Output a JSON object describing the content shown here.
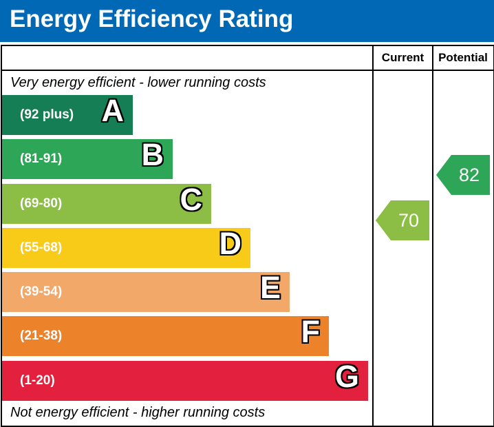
{
  "header": {
    "title": "Energy Efficiency Rating"
  },
  "columns": {
    "current": "Current",
    "potential": "Potential"
  },
  "captions": {
    "top": "Very energy efficient - lower running costs",
    "bottom": "Not energy efficient - higher running costs"
  },
  "chart_data": {
    "type": "bar",
    "categories": [
      "A",
      "B",
      "C",
      "D",
      "E",
      "F",
      "G"
    ],
    "bands": [
      {
        "letter": "A",
        "range": "(92 plus)",
        "color": "#167e55"
      },
      {
        "letter": "B",
        "range": "(81-91)",
        "color": "#2ea658"
      },
      {
        "letter": "C",
        "range": "(69-80)",
        "color": "#8cbd44"
      },
      {
        "letter": "D",
        "range": "(55-68)",
        "color": "#f7cb17"
      },
      {
        "letter": "E",
        "range": "(39-54)",
        "color": "#f1a869"
      },
      {
        "letter": "F",
        "range": "(21-38)",
        "color": "#ec8229"
      },
      {
        "letter": "G",
        "range": "(1-20)",
        "color": "#e3213f"
      }
    ],
    "current": {
      "value": "70",
      "band": "C",
      "color": "#8cbd44"
    },
    "potential": {
      "value": "82",
      "band": "B",
      "color": "#2ea658"
    }
  }
}
